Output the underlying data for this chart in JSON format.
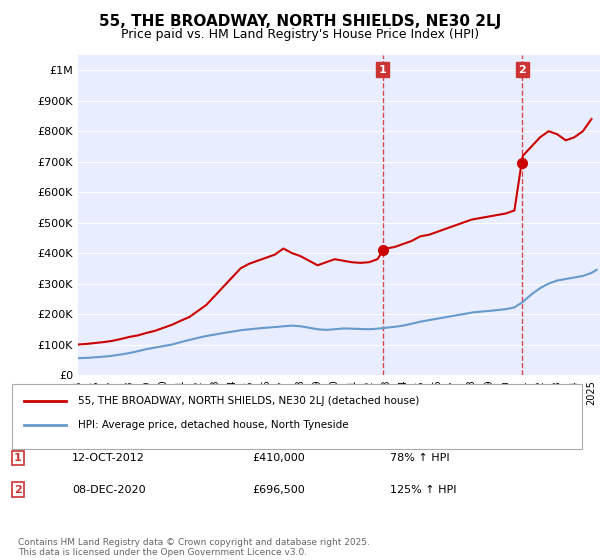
{
  "title": "55, THE BROADWAY, NORTH SHIELDS, NE30 2LJ",
  "subtitle": "Price paid vs. HM Land Registry's House Price Index (HPI)",
  "background_color": "#f0f4ff",
  "plot_bg_color": "#e8eeff",
  "legend_line1": "55, THE BROADWAY, NORTH SHIELDS, NE30 2LJ (detached house)",
  "legend_line2": "HPI: Average price, detached house, North Tyneside",
  "note": "Contains HM Land Registry data © Crown copyright and database right 2025.\nThis data is licensed under the Open Government Licence v3.0.",
  "annotation1_label": "1",
  "annotation1_date": "12-OCT-2012",
  "annotation1_price": "£410,000",
  "annotation1_hpi": "78% ↑ HPI",
  "annotation2_label": "2",
  "annotation2_date": "08-DEC-2020",
  "annotation2_price": "£696,500",
  "annotation2_hpi": "125% ↑ HPI",
  "red_color": "#cc0000",
  "blue_color": "#6699cc",
  "vline_color": "#cc0000",
  "annotation_box_color": "#cc3333",
  "ylim_max": 1050000,
  "ylim_min": 0,
  "hpi_data": {
    "years": [
      1995,
      1996,
      1997,
      1998,
      1999,
      2000,
      2001,
      2002,
      2003,
      2004,
      2005,
      2006,
      2007,
      2008,
      2009,
      2010,
      2011,
      2012,
      2013,
      2014,
      2015,
      2016,
      2017,
      2018,
      2019,
      2020,
      2021,
      2022,
      2023,
      2024,
      2025
    ],
    "values": [
      55000,
      57000,
      60000,
      65000,
      72000,
      80000,
      90000,
      110000,
      130000,
      150000,
      155000,
      160000,
      165000,
      160000,
      150000,
      155000,
      150000,
      152000,
      160000,
      175000,
      185000,
      195000,
      205000,
      210000,
      215000,
      230000,
      270000,
      300000,
      310000,
      330000,
      350000
    ]
  },
  "red_data_x": [
    1995.0,
    1995.5,
    1996.0,
    1996.5,
    1997.0,
    1997.5,
    1998.0,
    1998.5,
    1999.0,
    1999.5,
    2000.0,
    2000.5,
    2001.0,
    2001.5,
    2002.0,
    2002.5,
    2003.0,
    2003.5,
    2004.0,
    2004.5,
    2005.0,
    2005.5,
    2006.0,
    2006.5,
    2007.0,
    2007.5,
    2008.0,
    2008.5,
    2009.0,
    2009.5,
    2010.0,
    2010.5,
    2011.0,
    2011.5,
    2012.0,
    2012.5,
    2012.83,
    2013.0,
    2013.5,
    2014.0,
    2014.5,
    2015.0,
    2015.5,
    2016.0,
    2016.5,
    2017.0,
    2017.5,
    2018.0,
    2018.5,
    2019.0,
    2019.5,
    2020.0,
    2020.5,
    2020.92,
    2021.0,
    2021.5,
    2022.0,
    2022.5,
    2023.0,
    2023.5,
    2024.0,
    2024.5,
    2025.0
  ],
  "red_data_y": [
    100000,
    102000,
    105000,
    108000,
    112000,
    118000,
    125000,
    130000,
    138000,
    145000,
    155000,
    165000,
    178000,
    190000,
    210000,
    230000,
    260000,
    290000,
    320000,
    350000,
    365000,
    375000,
    385000,
    395000,
    415000,
    400000,
    390000,
    375000,
    360000,
    370000,
    380000,
    375000,
    370000,
    368000,
    370000,
    380000,
    410000,
    415000,
    420000,
    430000,
    440000,
    455000,
    460000,
    470000,
    480000,
    490000,
    500000,
    510000,
    515000,
    520000,
    525000,
    530000,
    540000,
    696500,
    720000,
    750000,
    780000,
    800000,
    790000,
    770000,
    780000,
    800000,
    840000
  ]
}
